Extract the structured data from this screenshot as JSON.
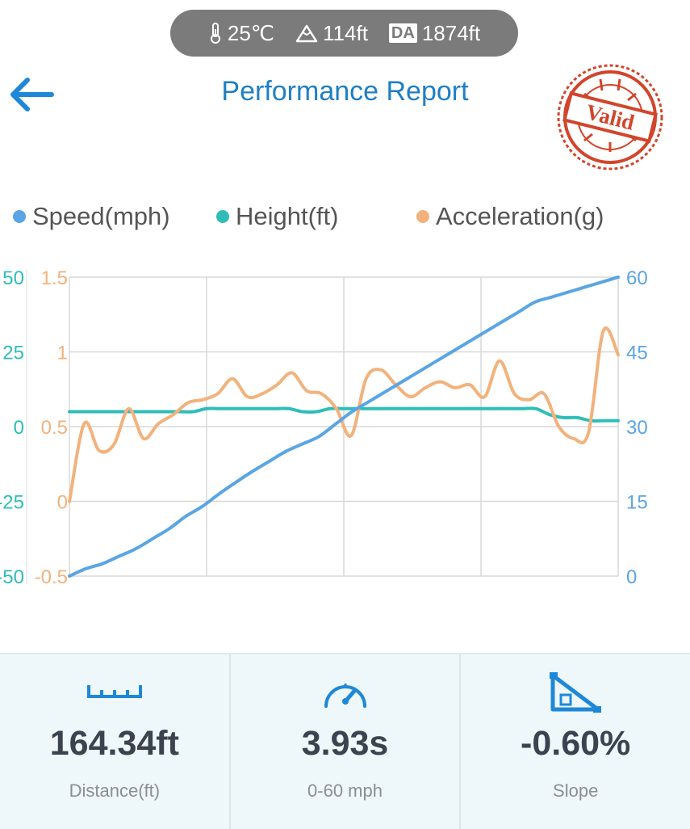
{
  "status": {
    "temperature": "25℃",
    "altitude": "114ft",
    "da_badge": "DA",
    "density_altitude": "1874ft",
    "icons": [
      "thermometer-icon",
      "mountain-icon"
    ]
  },
  "header": {
    "title": "Performance Report",
    "back_icon": "back-arrow-icon",
    "stamp_text": "Valid",
    "stamp_color": "#d2452b"
  },
  "legend": [
    {
      "label": "Speed(mph)",
      "color": "#5aa5e3"
    },
    {
      "label": "Height(ft)",
      "color": "#2fbdb8"
    },
    {
      "label": "Acceleration(g)",
      "color": "#f2b27c"
    }
  ],
  "chart_data": {
    "type": "line",
    "x": [
      0,
      1,
      2,
      3,
      4,
      5,
      6,
      7,
      8,
      9,
      10,
      11,
      12,
      13,
      14,
      15,
      16,
      17,
      18,
      19,
      20,
      21,
      22,
      23,
      24,
      25,
      26,
      27,
      28,
      29,
      30,
      31,
      32,
      33,
      34,
      35,
      36,
      37,
      38,
      39,
      40
    ],
    "series": [
      {
        "name": "Speed(mph)",
        "axis": "right",
        "color": "#5aa5e3",
        "values": [
          0,
          1.5,
          2.5,
          4,
          5.5,
          7.5,
          9.5,
          12,
          14,
          16.5,
          18.8,
          21,
          23,
          25,
          26.5,
          28,
          30.5,
          33,
          35,
          37,
          39,
          41,
          43,
          45,
          47,
          49,
          51,
          53,
          55,
          56,
          57,
          58,
          59,
          60,
          null,
          null,
          null,
          null,
          null,
          null,
          null
        ]
      },
      {
        "name": "Height(ft)",
        "axis": "left-outer",
        "color": "#2fbdb8",
        "values": [
          5,
          5,
          5,
          5,
          5,
          5,
          5,
          5,
          5,
          5,
          6,
          6,
          6,
          6,
          6,
          6,
          6,
          5,
          5,
          6,
          6,
          6,
          6,
          6,
          6,
          6,
          6,
          6,
          6,
          6,
          6,
          6,
          6,
          6,
          6,
          4,
          3,
          3,
          2,
          2,
          2
        ]
      },
      {
        "name": "Acceleration(g)",
        "axis": "left-inner",
        "color": "#f2b27c",
        "values": [
          0,
          0.52,
          0.34,
          0.38,
          0.62,
          0.42,
          0.52,
          0.58,
          0.66,
          0.68,
          0.72,
          0.82,
          0.7,
          0.72,
          0.78,
          0.86,
          0.74,
          0.72,
          0.62,
          0.44,
          0.82,
          0.88,
          0.78,
          0.7,
          0.76,
          0.8,
          0.76,
          0.78,
          0.7,
          0.94,
          0.72,
          0.68,
          0.72,
          0.5,
          0.42,
          0.46,
          1.14,
          0.98,
          null,
          null,
          null
        ]
      }
    ],
    "axes": {
      "left_outer": {
        "ticks": [
          "50",
          "25",
          "0",
          "-25",
          "-50"
        ],
        "range": [
          -50,
          50
        ],
        "color": "#2fbdb8"
      },
      "left_inner": {
        "ticks": [
          "1.5",
          "1",
          "0.5",
          "0",
          "-0.5"
        ],
        "range": [
          -0.5,
          1.5
        ],
        "color": "#f2b27c"
      },
      "right": {
        "ticks": [
          "60",
          "45",
          "30",
          "15",
          "0"
        ],
        "range": [
          0,
          60
        ],
        "color": "#5aa5e3"
      }
    },
    "grid": true,
    "legend": "top"
  },
  "stats": [
    {
      "icon": "ruler-icon",
      "value": "164.34ft",
      "label": "Distance(ft)"
    },
    {
      "icon": "speedometer-icon",
      "value": "3.93s",
      "label": "0-60 mph"
    },
    {
      "icon": "slope-icon",
      "value": "-0.60%",
      "label": "Slope"
    }
  ]
}
